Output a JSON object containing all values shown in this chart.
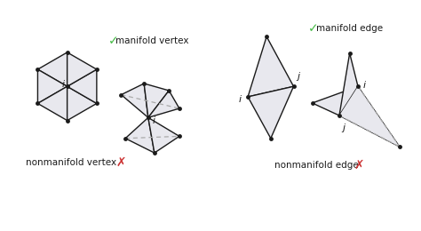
{
  "bg_color": "#ffffff",
  "face_color": "#e8e8ee",
  "edge_color": "#1a1a1a",
  "dashed_color": "#aaaaaa",
  "green_check": "#44bb44",
  "red_cross": "#cc3333",
  "font_size_label": 7.5,
  "font_size_ij": 8,
  "manifold_vertex_label": "manifold vertex",
  "nonmanifold_vertex_label": "nonmanifold vertex",
  "manifold_edge_label": "manifold edge",
  "nonmanifold_edge_label": "nonmanifold edge",
  "check": "✓",
  "cross": "✗"
}
